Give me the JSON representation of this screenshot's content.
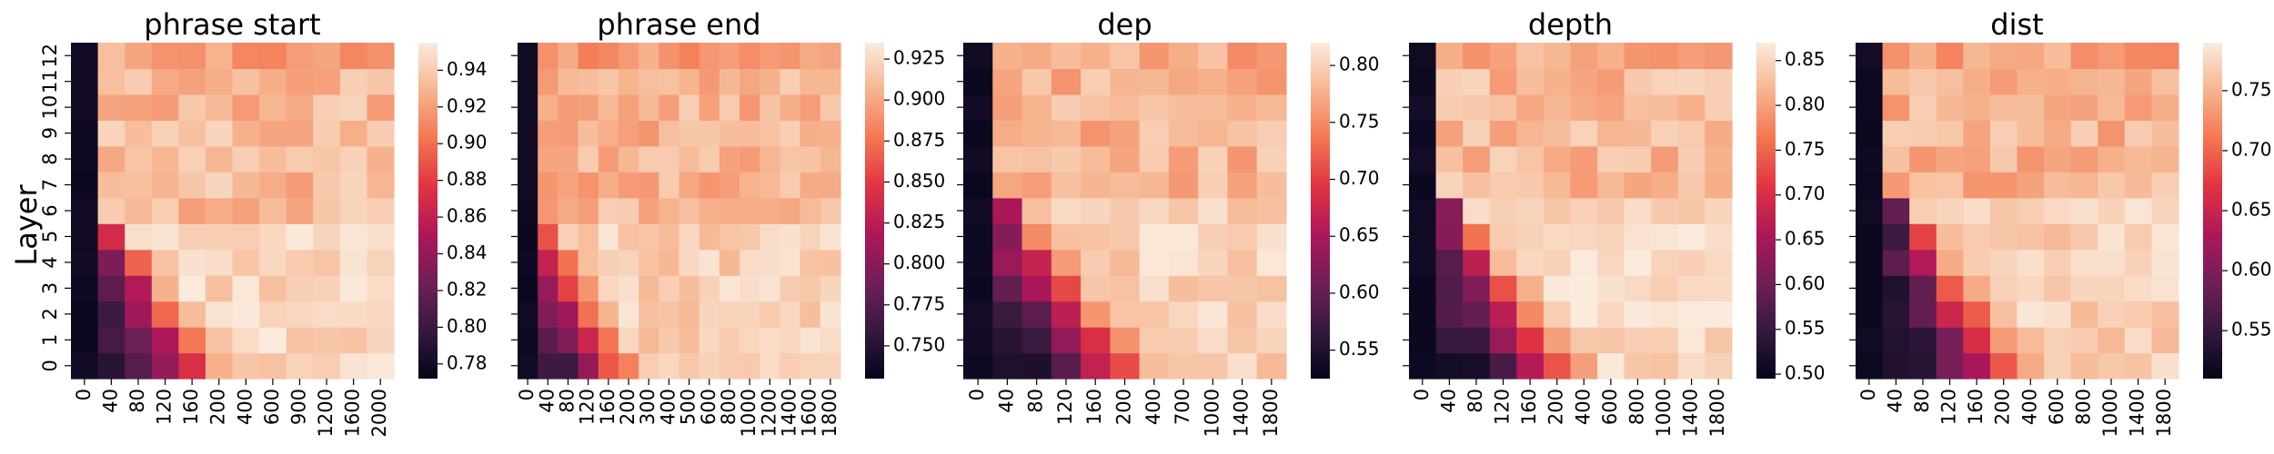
{
  "figure": {
    "ylabel": "Layer"
  },
  "colormap": {
    "name": "rocket",
    "stops": [
      "#03051a",
      "#35193e",
      "#701f57",
      "#ad1759",
      "#e13342",
      "#f37651",
      "#f6b48f",
      "#faebdd"
    ]
  },
  "chart_data": [
    {
      "type": "heatmap",
      "title": "phrase start",
      "x_ticks": [
        "0",
        "40",
        "80",
        "120",
        "160",
        "200",
        "400",
        "600",
        "900",
        "1200",
        "1600",
        "2000"
      ],
      "y_ticks": [
        "0",
        "1",
        "2",
        "3",
        "4",
        "5",
        "6",
        "7",
        "8",
        "9",
        "10",
        "11",
        "12"
      ],
      "colorbar_ticks": [
        "0.78",
        "0.80",
        "0.82",
        "0.84",
        "0.86",
        "0.88",
        "0.90",
        "0.92",
        "0.94"
      ],
      "zlim": [
        0.772,
        0.955
      ],
      "plateau_value": 0.945,
      "boundary_layer": 6,
      "near_zero_values": [
        0.79,
        0.8,
        0.81,
        0.82,
        0.84,
        0.86
      ]
    },
    {
      "type": "heatmap",
      "title": "phrase end",
      "x_ticks": [
        "0",
        "40",
        "80",
        "120",
        "160",
        "200",
        "300",
        "400",
        "500",
        "600",
        "800",
        "1000",
        "1200",
        "1400",
        "1600",
        "1800"
      ],
      "y_ticks": [
        "0",
        "1",
        "2",
        "3",
        "4",
        "5",
        "6",
        "7",
        "8",
        "9",
        "10",
        "11",
        "12"
      ],
      "colorbar_ticks": [
        "0.750",
        "0.775",
        "0.800",
        "0.825",
        "0.850",
        "0.875",
        "0.900",
        "0.925"
      ],
      "zlim": [
        0.73,
        0.935
      ],
      "plateau_value": 0.92,
      "boundary_layer": 6,
      "near_zero_values": [
        0.76,
        0.78,
        0.8,
        0.82,
        0.84,
        0.86
      ]
    },
    {
      "type": "heatmap",
      "title": "dep",
      "x_ticks": [
        "0",
        "40",
        "80",
        "120",
        "160",
        "200",
        "400",
        "700",
        "1000",
        "1400",
        "1800"
      ],
      "y_ticks": [
        "0",
        "1",
        "2",
        "3",
        "4",
        "5",
        "6",
        "7",
        "8",
        "9",
        "10",
        "11",
        "12"
      ],
      "colorbar_ticks": [
        "0.55",
        "0.60",
        "0.65",
        "0.70",
        "0.75",
        "0.80"
      ],
      "zlim": [
        0.525,
        0.82
      ],
      "plateau_value": 0.8,
      "boundary_layer": 7,
      "near_zero_values": [
        0.54,
        0.56,
        0.58,
        0.6,
        0.62,
        0.64
      ]
    },
    {
      "type": "heatmap",
      "title": "depth",
      "x_ticks": [
        "0",
        "40",
        "80",
        "120",
        "160",
        "200",
        "400",
        "600",
        "800",
        "1000",
        "1400",
        "1800"
      ],
      "y_ticks": [
        "0",
        "1",
        "2",
        "3",
        "4",
        "5",
        "6",
        "7",
        "8",
        "9",
        "10",
        "11",
        "12"
      ],
      "colorbar_ticks": [
        "0.50",
        "0.55",
        "0.60",
        "0.65",
        "0.70",
        "0.75",
        "0.80",
        "0.85"
      ],
      "zlim": [
        0.495,
        0.87
      ],
      "plateau_value": 0.85,
      "boundary_layer": 7,
      "near_zero_values": [
        0.5,
        0.53,
        0.56,
        0.58,
        0.6,
        0.62
      ]
    },
    {
      "type": "heatmap",
      "title": "dist",
      "x_ticks": [
        "0",
        "40",
        "80",
        "120",
        "160",
        "200",
        "400",
        "600",
        "800",
        "1000",
        "1400",
        "1800"
      ],
      "y_ticks": [
        "0",
        "1",
        "2",
        "3",
        "4",
        "5",
        "6",
        "7",
        "8",
        "9",
        "10",
        "11",
        "12"
      ],
      "colorbar_ticks": [
        "0.55",
        "0.60",
        "0.65",
        "0.70",
        "0.75"
      ],
      "zlim": [
        0.51,
        0.79
      ],
      "plateau_value": 0.77,
      "boundary_layer": 7,
      "near_zero_values": [
        0.52,
        0.53,
        0.54,
        0.55,
        0.56,
        0.57
      ]
    }
  ]
}
